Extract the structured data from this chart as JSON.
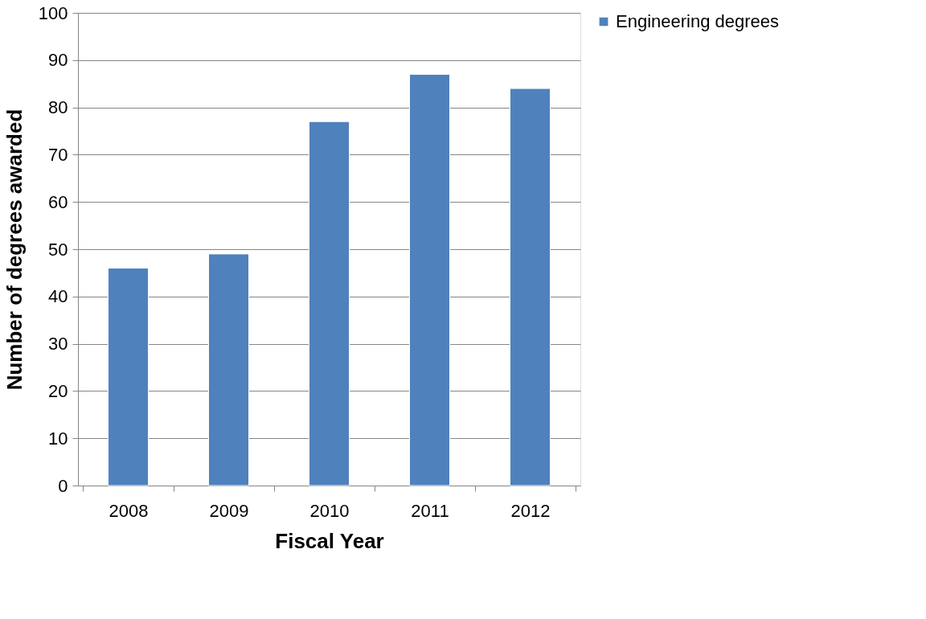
{
  "chart_data": {
    "type": "bar",
    "xlabel": "Fiscal Year",
    "ylabel": "Number of degrees awarded",
    "categories": [
      "2008",
      "2009",
      "2010",
      "2011",
      "2012"
    ],
    "series": [
      {
        "name": "Engineering degrees",
        "color": "#4f81bd",
        "values": [
          46,
          49,
          77,
          87,
          84
        ]
      }
    ],
    "ylim": [
      0,
      100
    ],
    "yticks": [
      0,
      10,
      20,
      30,
      40,
      50,
      60,
      70,
      80,
      90,
      100
    ],
    "grid": "y",
    "legend": "right"
  }
}
